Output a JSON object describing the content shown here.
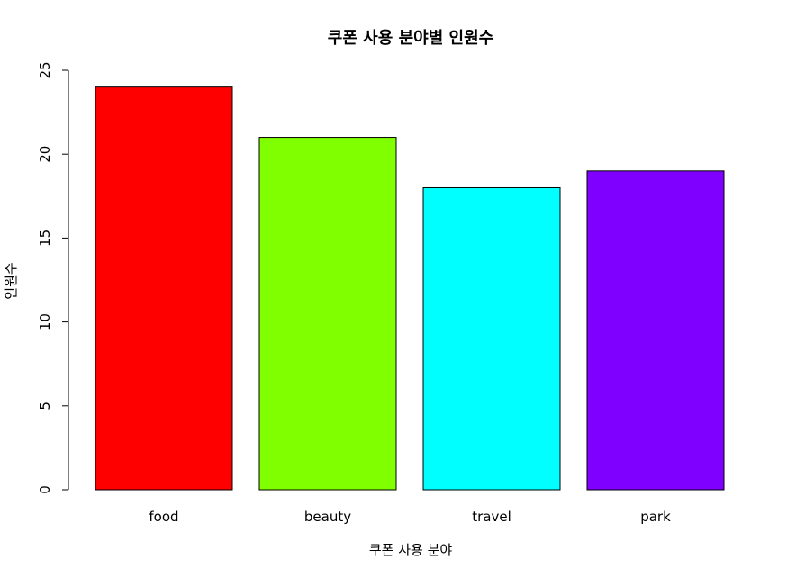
{
  "chart_data": {
    "type": "bar",
    "title": "쿠폰 사용 분야별 인원수",
    "xlabel": "쿠폰 사용 분야",
    "ylabel": "인원수",
    "categories": [
      "food",
      "beauty",
      "travel",
      "park"
    ],
    "values": [
      24,
      21,
      18,
      19
    ],
    "colors": [
      "#ff0000",
      "#80ff00",
      "#00ffff",
      "#8000ff"
    ],
    "ylim": [
      0,
      25
    ],
    "yticks": [
      0,
      5,
      10,
      15,
      20,
      25
    ],
    "grid": false,
    "legend": "none"
  }
}
